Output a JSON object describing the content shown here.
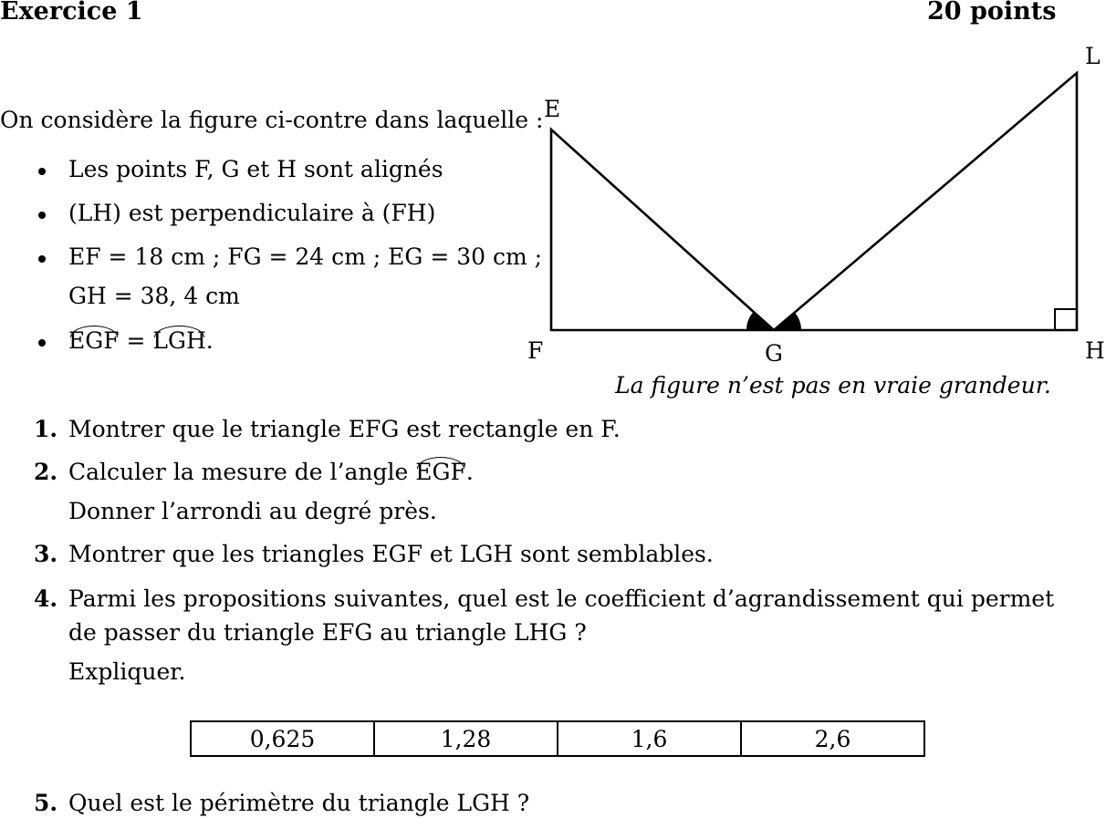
{
  "header": {
    "title": "Exercice 1",
    "points": "20 points"
  },
  "intro": "On considère la figure ci-contre dans laquelle :",
  "bullets": {
    "b1": "Les points F, G et H sont alignés",
    "b2": "(LH) est perpendiculaire à (FH)",
    "b3_line1": "EF = 18 cm ; FG = 24 cm ; EG = 30 cm ;",
    "b3_line2": "GH = 38, 4 cm",
    "b4_left": "EGF",
    "b4_eq": " = ",
    "b4_right": "LGH",
    "b4_end": "."
  },
  "figure": {
    "labels": {
      "E": "E",
      "F": "F",
      "G": "G",
      "H": "H",
      "L": "L"
    },
    "caption": "La figure n’est pas en vraie grandeur."
  },
  "questions": {
    "q1": {
      "num": "1.",
      "text": "Montrer que le triangle EFG est rectangle en F."
    },
    "q2": {
      "num": "2.",
      "text_a": "Calculer la mesure de l’angle ",
      "angle": "EGF",
      "text_b": ".",
      "line2": "Donner l’arrondi au degré près."
    },
    "q3": {
      "num": "3.",
      "text": "Montrer que les triangles EGF et LGH sont semblables."
    },
    "q4": {
      "num": "4.",
      "line1": "Parmi les propositions suivantes, quel est le coefficient d’agrandissement qui permet",
      "line2": "de passer du triangle EFG au triangle LHG ?",
      "line3": "Expliquer."
    },
    "q5": {
      "num": "5.",
      "text": "Quel est le périmètre du triangle LGH ?"
    }
  },
  "proposals": [
    "0,625",
    "1,28",
    "1,6",
    "2,6"
  ]
}
